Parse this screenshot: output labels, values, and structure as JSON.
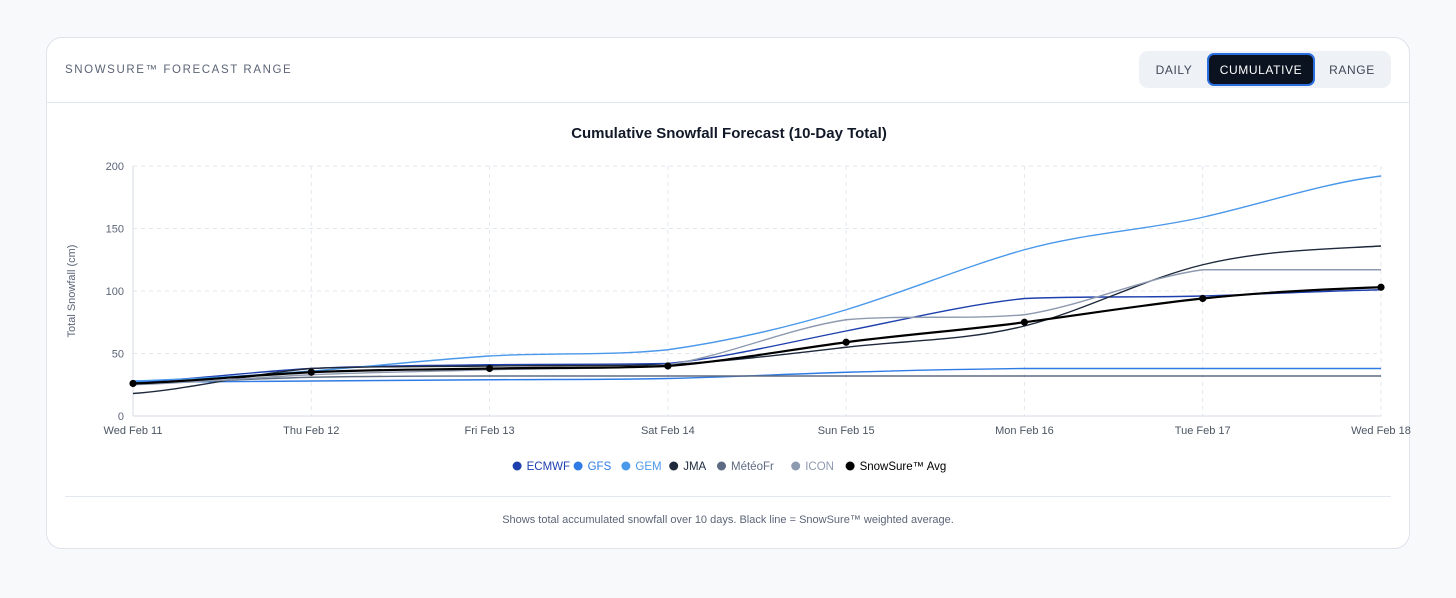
{
  "header": {
    "title": "SnowSure™ Forecast Range",
    "tabs": [
      {
        "label": "Daily",
        "active": false
      },
      {
        "label": "Cumulative",
        "active": true
      },
      {
        "label": "Range",
        "active": false
      }
    ]
  },
  "footer": {
    "note": "Shows total accumulated snowfall over 10 days. Black line = SnowSure™ weighted average."
  },
  "chart_data": {
    "type": "line",
    "title": "Cumulative Snowfall Forecast (10-Day Total)",
    "xlabel": "",
    "ylabel": "Total Snowfall (cm)",
    "ylim": [
      0,
      200
    ],
    "yticks": [
      0,
      50,
      100,
      150,
      200
    ],
    "grid": true,
    "legend_position": "bottom-center",
    "categories": [
      "Wed Feb 11",
      "Thu Feb 12",
      "Fri Feb 13",
      "Sat Feb 14",
      "Sun Feb 15",
      "Mon Feb 16",
      "Tue Feb 17",
      "Wed Feb 18"
    ],
    "series": [
      {
        "name": "ECMWF",
        "color": "#1e3fae",
        "values": [
          27,
          38,
          41,
          42,
          68,
          94,
          96,
          101
        ],
        "markers": false
      },
      {
        "name": "GFS",
        "color": "#2f7be6",
        "values": [
          27,
          28,
          29,
          30,
          35,
          38,
          38,
          38
        ],
        "markers": false
      },
      {
        "name": "GEM",
        "color": "#4a98ea",
        "values": [
          28,
          36,
          48,
          53,
          85,
          133,
          159,
          192
        ],
        "markers": false
      },
      {
        "name": "JMA",
        "color": "#1e293b",
        "values": [
          18,
          38,
          40,
          41,
          55,
          72,
          121,
          136
        ],
        "markers": false
      },
      {
        "name": "MétéoFr",
        "color": "#5d6b82",
        "values": [
          26,
          31,
          32,
          32,
          32,
          32,
          32,
          32
        ],
        "markers": false
      },
      {
        "name": "ICON",
        "color": "#8e9ab0",
        "values": [
          25,
          33,
          37,
          41,
          77,
          81,
          117,
          117
        ],
        "markers": false
      },
      {
        "name": "SnowSure™ Avg",
        "color": "#000000",
        "values": [
          26,
          35,
          38,
          40,
          59,
          75,
          94,
          103
        ],
        "markers": true
      }
    ]
  }
}
